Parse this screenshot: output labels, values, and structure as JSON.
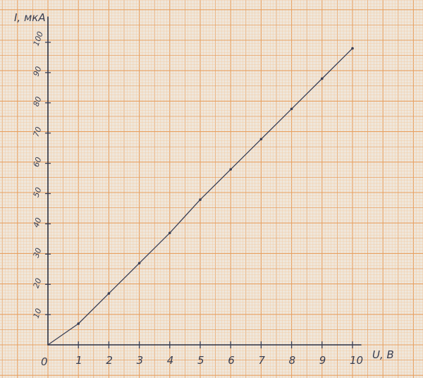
{
  "chart_data": {
    "type": "line",
    "title": "",
    "xlabel": "U, B",
    "ylabel": "I, мкА",
    "origin_label": "0",
    "xlim": [
      0,
      10
    ],
    "ylim": [
      0,
      100
    ],
    "x_ticks": [
      "1",
      "2",
      "3",
      "4",
      "5",
      "6",
      "7",
      "8",
      "9",
      "10"
    ],
    "y_ticks": [
      "10",
      "20",
      "30",
      "40",
      "50",
      "60",
      "70",
      "80",
      "90",
      "100"
    ],
    "grid": true,
    "legend": "none",
    "series": [
      {
        "x": [
          0,
          1,
          2,
          3,
          4,
          5,
          6,
          7,
          8,
          9,
          10
        ],
        "y": [
          0,
          7,
          17,
          27,
          37,
          48,
          58,
          68,
          78,
          88,
          98
        ]
      }
    ],
    "colors": {
      "paper": "#efe7dc",
      "grid_minor": "#f3c9a0",
      "grid_major": "#e8a060",
      "ink": "#3a3f55"
    }
  }
}
